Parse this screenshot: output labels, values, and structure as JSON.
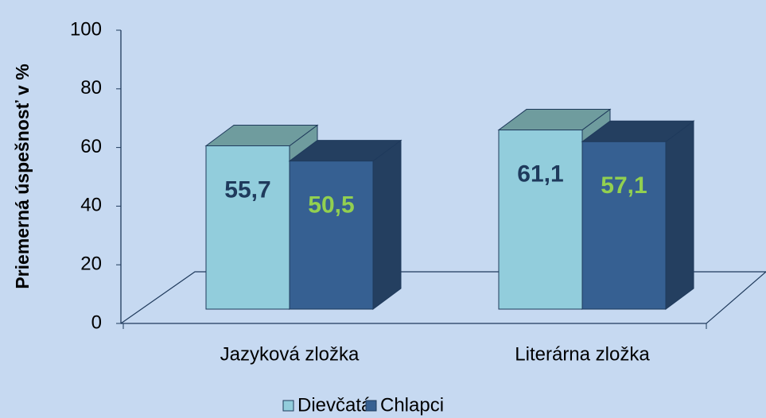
{
  "chart_data": {
    "type": "bar3d",
    "y_label": "Priemerná úspešnosť v %",
    "categories": [
      "Jazyková zložka",
      "Literárna zložka"
    ],
    "series": [
      {
        "name": "Dievčatá",
        "color": "#92cddc",
        "top_color": "#6f9c9e",
        "label_color": "#1f3a5c",
        "values": [
          55.7,
          61.1
        ],
        "value_labels": [
          "55,7",
          "61,1"
        ]
      },
      {
        "name": "Chlapci",
        "color": "#366092",
        "top_color": "#243f60",
        "label_color": "#92d050",
        "values": [
          50.5,
          57.1
        ],
        "value_labels": [
          "50,5",
          "57,1"
        ]
      }
    ],
    "ylim": [
      0,
      100
    ],
    "yticks": [
      0,
      20,
      40,
      60,
      80,
      100
    ],
    "legend": "bottom"
  }
}
